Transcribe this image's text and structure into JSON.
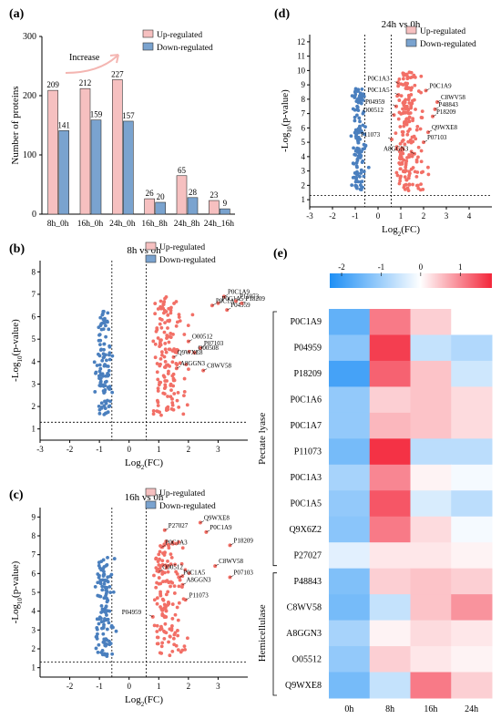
{
  "panels": {
    "a": {
      "label": "(a)",
      "ylabel": "Number of proteins",
      "annotation": "Increase"
    },
    "b": {
      "label": "(b)",
      "title": "8h vs 0h"
    },
    "c": {
      "label": "(c)",
      "title": "16h vs 0h"
    },
    "d": {
      "label": "(d)",
      "title": "24h vs 0h"
    },
    "e": {
      "label": "(e)",
      "group1": "Pectate lyase",
      "group2": "Hemicellulase"
    }
  },
  "legend": {
    "up": "Up-regulated",
    "down": "Down-regulated"
  },
  "colors": {
    "up_bar": "#f6c0c0",
    "down_bar": "#7aa3cf",
    "up_dot": "#f26f66",
    "down_dot": "#4a7fbe"
  },
  "volcano_axis": {
    "ylabel_main": "-Log",
    "ylabel_sub": "10",
    "ylabel_tail": "(p-value)",
    "xlabel_main": "Log",
    "xlabel_sub": "2",
    "xlabel_tail": "(FC)"
  },
  "chart_data": [
    {
      "type": "bar",
      "panel": "a",
      "categories": [
        "8h_0h",
        "16h_0h",
        "24h_0h",
        "16h_8h",
        "24h_8h",
        "24h_16h"
      ],
      "series": [
        {
          "name": "Up-regulated",
          "values": [
            209,
            212,
            227,
            26,
            65,
            23
          ]
        },
        {
          "name": "Down-regulated",
          "values": [
            141,
            159,
            157,
            20,
            28,
            9
          ]
        }
      ],
      "yticks": [
        0,
        100,
        200,
        300
      ],
      "ylim": [
        0,
        300
      ],
      "ylabel": "Number of proteins",
      "legend_position": "top-right"
    },
    {
      "type": "scatter",
      "panel": "b",
      "title": "8h vs 0h",
      "xlim": [
        -3,
        4
      ],
      "ylim": [
        0.5,
        8.5
      ],
      "xticks": [
        -3,
        -2,
        -1,
        0,
        1,
        2,
        3
      ],
      "yticks": [
        1,
        2,
        3,
        4,
        5,
        6,
        7,
        8
      ],
      "thresholds": {
        "x": [
          -0.58,
          0.58
        ],
        "y": 1.3
      },
      "labels": [
        {
          "text": "P0C1A9",
          "x": 3.2,
          "y": 6.9
        },
        {
          "text": "P0C1A5",
          "x": 3.0,
          "y": 6.6
        },
        {
          "text": "P0C1A3",
          "x": 2.8,
          "y": 6.5
        },
        {
          "text": "P04959",
          "x": 3.3,
          "y": 6.3
        },
        {
          "text": "P11073",
          "x": 3.6,
          "y": 6.7
        },
        {
          "text": "P18209",
          "x": 3.8,
          "y": 6.6
        },
        {
          "text": "O00512",
          "x": 2.0,
          "y": 4.9
        },
        {
          "text": "P07103",
          "x": 2.4,
          "y": 4.6
        },
        {
          "text": "O00508",
          "x": 2.2,
          "y": 4.4
        },
        {
          "text": "Q9WXE8",
          "x": 1.5,
          "y": 4.2
        },
        {
          "text": "A8GGN3",
          "x": 1.6,
          "y": 3.7
        },
        {
          "text": "C8WV58",
          "x": 2.5,
          "y": 3.6
        }
      ]
    },
    {
      "type": "scatter",
      "panel": "c",
      "title": "16h vs 0h",
      "xlim": [
        -3,
        4
      ],
      "ylim": [
        0.5,
        9.5
      ],
      "xticks": [
        -2,
        -1,
        0,
        1,
        2,
        3
      ],
      "yticks": [
        1,
        2,
        3,
        4,
        5,
        6,
        7,
        8,
        9
      ],
      "thresholds": {
        "x": [
          -0.58,
          0.58
        ],
        "y": 1.3
      },
      "labels": [
        {
          "text": "Q9WXE8",
          "x": 2.4,
          "y": 8.7
        },
        {
          "text": "P0C1A9",
          "x": 2.6,
          "y": 8.2
        },
        {
          "text": "P27027",
          "x": 1.2,
          "y": 8.3
        },
        {
          "text": "P18209",
          "x": 3.4,
          "y": 7.5
        },
        {
          "text": "P0C1A3",
          "x": 1.1,
          "y": 7.4
        },
        {
          "text": "C8WV58",
          "x": 2.9,
          "y": 6.4
        },
        {
          "text": "O00512",
          "x": 1.0,
          "y": 6.1
        },
        {
          "text": "P0C1A5",
          "x": 1.7,
          "y": 5.8
        },
        {
          "text": "P07103",
          "x": 3.4,
          "y": 5.8
        },
        {
          "text": "A8GGN3",
          "x": 1.8,
          "y": 5.4
        },
        {
          "text": "P11073",
          "x": 1.9,
          "y": 4.6
        },
        {
          "text": "P04959",
          "x": 0.8,
          "y": 3.7
        }
      ]
    },
    {
      "type": "scatter",
      "panel": "d",
      "title": "24h vs 0h",
      "xlim": [
        -3,
        5
      ],
      "ylim": [
        0.5,
        12.5
      ],
      "xticks": [
        -3,
        -2,
        -1,
        0,
        1,
        2,
        3,
        4
      ],
      "yticks": [
        1,
        2,
        3,
        4,
        5,
        6,
        7,
        8,
        9,
        10,
        11,
        12
      ],
      "thresholds": {
        "x": [
          -0.58,
          0.58
        ],
        "y": 1.3
      },
      "labels": [
        {
          "text": "P0C1A3",
          "x": 0.9,
          "y": 9.1
        },
        {
          "text": "P0C1A9",
          "x": 2.1,
          "y": 8.6
        },
        {
          "text": "P0C1A5",
          "x": 0.9,
          "y": 8.3
        },
        {
          "text": "C8WV58",
          "x": 2.6,
          "y": 7.8
        },
        {
          "text": "P48843",
          "x": 2.5,
          "y": 7.3
        },
        {
          "text": "P04959",
          "x": 0.8,
          "y": 7.5
        },
        {
          "text": "P18209",
          "x": 2.4,
          "y": 6.8
        },
        {
          "text": "O00512",
          "x": 0.7,
          "y": 6.9
        },
        {
          "text": "Q9WXE8",
          "x": 2.2,
          "y": 5.7
        },
        {
          "text": "P07103",
          "x": 2.0,
          "y": 5.0
        },
        {
          "text": "P11073",
          "x": 0.6,
          "y": 5.2
        },
        {
          "text": "A8GGN3",
          "x": 1.6,
          "y": 4.2
        }
      ]
    },
    {
      "type": "heatmap",
      "panel": "e",
      "columns": [
        "0h",
        "8h",
        "16h",
        "24h"
      ],
      "rows": [
        "P0C1A9",
        "P04959",
        "P18209",
        "P0C1A6",
        "P0C1A7",
        "P11073",
        "P0C1A3",
        "P0C1A5",
        "Q9X6Z2",
        "P27027",
        "P48843",
        "C8WV58",
        "A8GGN3",
        "O05512",
        "Q9WXE8"
      ],
      "colorbar_ticks": [
        -2,
        -1,
        0,
        1
      ],
      "colorbar_range": [
        -2.3,
        1.8
      ],
      "values": [
        [
          -1.6,
          1.1,
          0.4,
          0.0
        ],
        [
          -1.2,
          1.6,
          -0.6,
          -0.8
        ],
        [
          -1.9,
          1.3,
          0.5,
          -0.5
        ],
        [
          -1.1,
          0.4,
          0.5,
          0.3
        ],
        [
          -1.1,
          0.6,
          0.5,
          0.3
        ],
        [
          -1.4,
          1.7,
          -0.7,
          -0.7
        ],
        [
          -0.9,
          1.0,
          0.1,
          -0.1
        ],
        [
          -1.1,
          1.4,
          -0.4,
          -0.7
        ],
        [
          -1.2,
          1.1,
          0.3,
          -0.1
        ],
        [
          -0.3,
          0.2,
          0.2,
          0.1
        ],
        [
          -1.3,
          0.4,
          0.5,
          0.4
        ],
        [
          -1.4,
          -0.6,
          0.5,
          0.9
        ],
        [
          -0.9,
          0.1,
          0.3,
          0.2
        ],
        [
          -1.1,
          0.4,
          0.2,
          0.1
        ],
        [
          -1.4,
          -0.6,
          1.1,
          0.4
        ]
      ]
    }
  ]
}
